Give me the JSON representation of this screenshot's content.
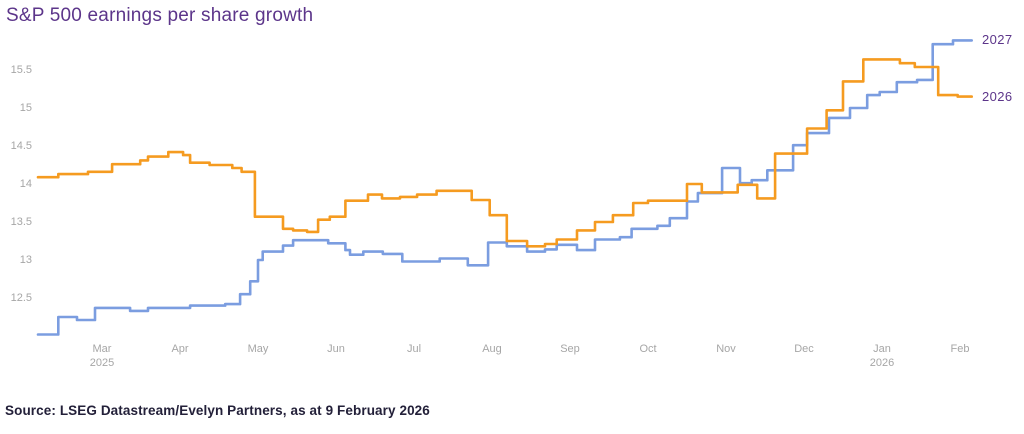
{
  "title": "S&P 500 earnings per share growth",
  "source": "Source: LSEG Datastream/Evelyn Partners, as at 9 February 2026",
  "colors": {
    "background": "#FFFFFF",
    "title_text": "#5C358A",
    "axis_text": "#A6A6A6",
    "end_label_text": "#5C358A",
    "source_text": "#232039",
    "series_2027": "#7B9DE0",
    "series_2026": "#F59B20"
  },
  "chart_data": {
    "type": "line",
    "line_style": "step",
    "title": "S&P 500 earnings per share growth",
    "grid": false,
    "legend_position": "line-end-labels-right",
    "x_axis": {
      "unit": "month",
      "ticks": [
        {
          "label": "Mar",
          "sublabel": "2025"
        },
        {
          "label": "Apr"
        },
        {
          "label": "May"
        },
        {
          "label": "Jun"
        },
        {
          "label": "Jul"
        },
        {
          "label": "Aug"
        },
        {
          "label": "Sep"
        },
        {
          "label": "Oct"
        },
        {
          "label": "Nov"
        },
        {
          "label": "Dec"
        },
        {
          "label": "Jan",
          "sublabel": "2026"
        },
        {
          "label": "Feb"
        }
      ],
      "range": [
        -0.82,
        11.15
      ]
    },
    "y_axis": {
      "ticks": [
        12.5,
        13,
        13.5,
        14,
        14.5,
        15,
        15.5
      ],
      "range": [
        11.95,
        15.97
      ]
    },
    "series": [
      {
        "name": "2027",
        "color_key": "series_2027",
        "points": [
          [
            -0.82,
            12.02
          ],
          [
            -0.56,
            12.25
          ],
          [
            -0.32,
            12.21
          ],
          [
            -0.09,
            12.37
          ],
          [
            0.36,
            12.33
          ],
          [
            0.59,
            12.37
          ],
          [
            1.13,
            12.4
          ],
          [
            1.58,
            12.42
          ],
          [
            1.77,
            12.55
          ],
          [
            1.9,
            12.72
          ],
          [
            2.0,
            13.0
          ],
          [
            2.06,
            13.11
          ],
          [
            2.32,
            13.19
          ],
          [
            2.45,
            13.26
          ],
          [
            2.9,
            13.22
          ],
          [
            3.12,
            13.13
          ],
          [
            3.18,
            13.07
          ],
          [
            3.35,
            13.11
          ],
          [
            3.6,
            13.08
          ],
          [
            3.85,
            12.98
          ],
          [
            4.33,
            13.02
          ],
          [
            4.69,
            12.93
          ],
          [
            4.95,
            13.23
          ],
          [
            5.19,
            13.18
          ],
          [
            5.45,
            13.11
          ],
          [
            5.68,
            13.14
          ],
          [
            5.83,
            13.2
          ],
          [
            6.09,
            13.13
          ],
          [
            6.32,
            13.27
          ],
          [
            6.64,
            13.3
          ],
          [
            6.79,
            13.41
          ],
          [
            7.12,
            13.45
          ],
          [
            7.28,
            13.55
          ],
          [
            7.5,
            13.77
          ],
          [
            7.64,
            13.88
          ],
          [
            7.95,
            14.21
          ],
          [
            8.18,
            14.01
          ],
          [
            8.33,
            14.05
          ],
          [
            8.53,
            14.18
          ],
          [
            8.86,
            14.51
          ],
          [
            9.04,
            14.67
          ],
          [
            9.32,
            14.87
          ],
          [
            9.59,
            15.0
          ],
          [
            9.81,
            15.17
          ],
          [
            9.97,
            15.21
          ],
          [
            10.19,
            15.34
          ],
          [
            10.45,
            15.37
          ],
          [
            10.65,
            15.84
          ],
          [
            10.91,
            15.89
          ]
        ]
      },
      {
        "name": "2026",
        "color_key": "series_2026",
        "points": [
          [
            -0.82,
            14.09
          ],
          [
            -0.56,
            14.13
          ],
          [
            -0.18,
            14.16
          ],
          [
            0.13,
            14.26
          ],
          [
            0.49,
            14.31
          ],
          [
            0.59,
            14.36
          ],
          [
            0.85,
            14.42
          ],
          [
            1.04,
            14.38
          ],
          [
            1.13,
            14.28
          ],
          [
            1.38,
            14.25
          ],
          [
            1.67,
            14.21
          ],
          [
            1.79,
            14.16
          ],
          [
            1.96,
            13.57
          ],
          [
            2.32,
            13.41
          ],
          [
            2.45,
            13.39
          ],
          [
            2.63,
            13.37
          ],
          [
            2.77,
            13.53
          ],
          [
            2.92,
            13.57
          ],
          [
            3.12,
            13.78
          ],
          [
            3.41,
            13.86
          ],
          [
            3.59,
            13.81
          ],
          [
            3.82,
            13.83
          ],
          [
            4.04,
            13.86
          ],
          [
            4.29,
            13.91
          ],
          [
            4.74,
            13.79
          ],
          [
            4.97,
            13.59
          ],
          [
            5.19,
            13.25
          ],
          [
            5.45,
            13.18
          ],
          [
            5.68,
            13.21
          ],
          [
            5.83,
            13.27
          ],
          [
            6.09,
            13.39
          ],
          [
            6.32,
            13.5
          ],
          [
            6.55,
            13.59
          ],
          [
            6.81,
            13.75
          ],
          [
            7.0,
            13.78
          ],
          [
            7.5,
            14.0
          ],
          [
            7.69,
            13.89
          ],
          [
            8.15,
            13.99
          ],
          [
            8.4,
            13.81
          ],
          [
            8.63,
            14.4
          ],
          [
            9.04,
            14.73
          ],
          [
            9.29,
            14.97
          ],
          [
            9.5,
            15.35
          ],
          [
            9.76,
            15.64
          ],
          [
            10.23,
            15.59
          ],
          [
            10.42,
            15.54
          ],
          [
            10.72,
            15.17
          ],
          [
            10.97,
            15.15
          ]
        ]
      }
    ]
  }
}
